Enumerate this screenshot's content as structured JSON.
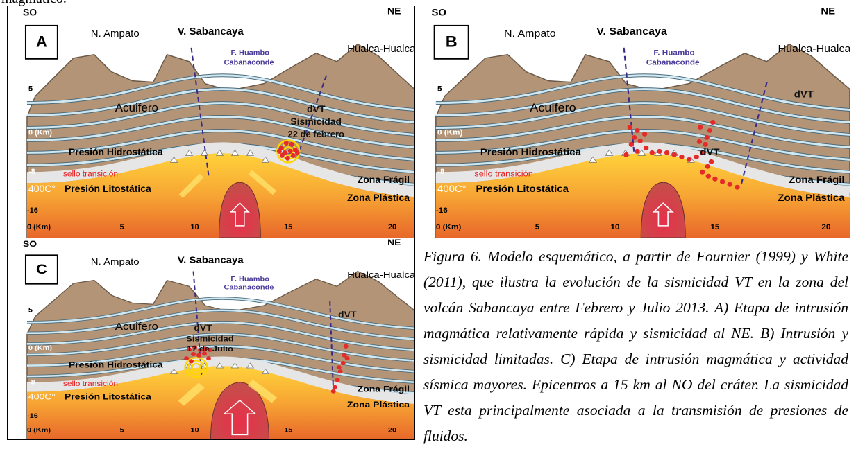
{
  "top_fragment": "magmático.",
  "section_labels": {
    "left_direction": "SO",
    "right_direction": "NE",
    "n_ampato": "N. Ampato",
    "v_sabancaya": "V. Sabancaya",
    "fault_1": "F. Huambo",
    "fault_2": "Cabanaconde",
    "hualca": "Hualca-Hualca",
    "aquifer": "Acuifero",
    "depth_5": "5",
    "depth_0": "0 (Km)",
    "depth_m8": "-8",
    "depth_m16": "-16",
    "hydro": "Presión Hidrostática",
    "seal": "sello transición",
    "temp": "400C°",
    "litho": "Presión Litostática",
    "fragile": "Zona Frágil",
    "plastic": "Zona Plástica",
    "x_0": "0 (Km)",
    "x_5": "5",
    "x_10": "10",
    "x_15": "15",
    "x_20": "20"
  },
  "panels": [
    {
      "letter": "A",
      "annotations": [
        "dVT",
        "Sismicidad",
        "22 de febrero"
      ]
    },
    {
      "letter": "B",
      "annotations": [
        "dVT",
        "dVT"
      ]
    },
    {
      "letter": "C",
      "annotations": [
        "dVT",
        "Sismicidad",
        "17 de Julio",
        "dVT"
      ]
    }
  ],
  "caption": "Figura 6. Modelo esquemático, a partir de Fournier (1999) y White (2011), que ilustra la evolución de la sismicidad VT en la zona del volcán Sabancaya entre Febrero y Julio 2013. A) Etapa de intrusión magmática relativamente rápida y sismicidad al NE. B) Intrusión y sismicidad limitadas. C) Etapa de intrusión magmática y actividad sísmica mayores. Epicentros a 15 km al NO del cráter. La sismicidad VT esta principalmente asociada a la transmisión de presiones de fluidos."
}
